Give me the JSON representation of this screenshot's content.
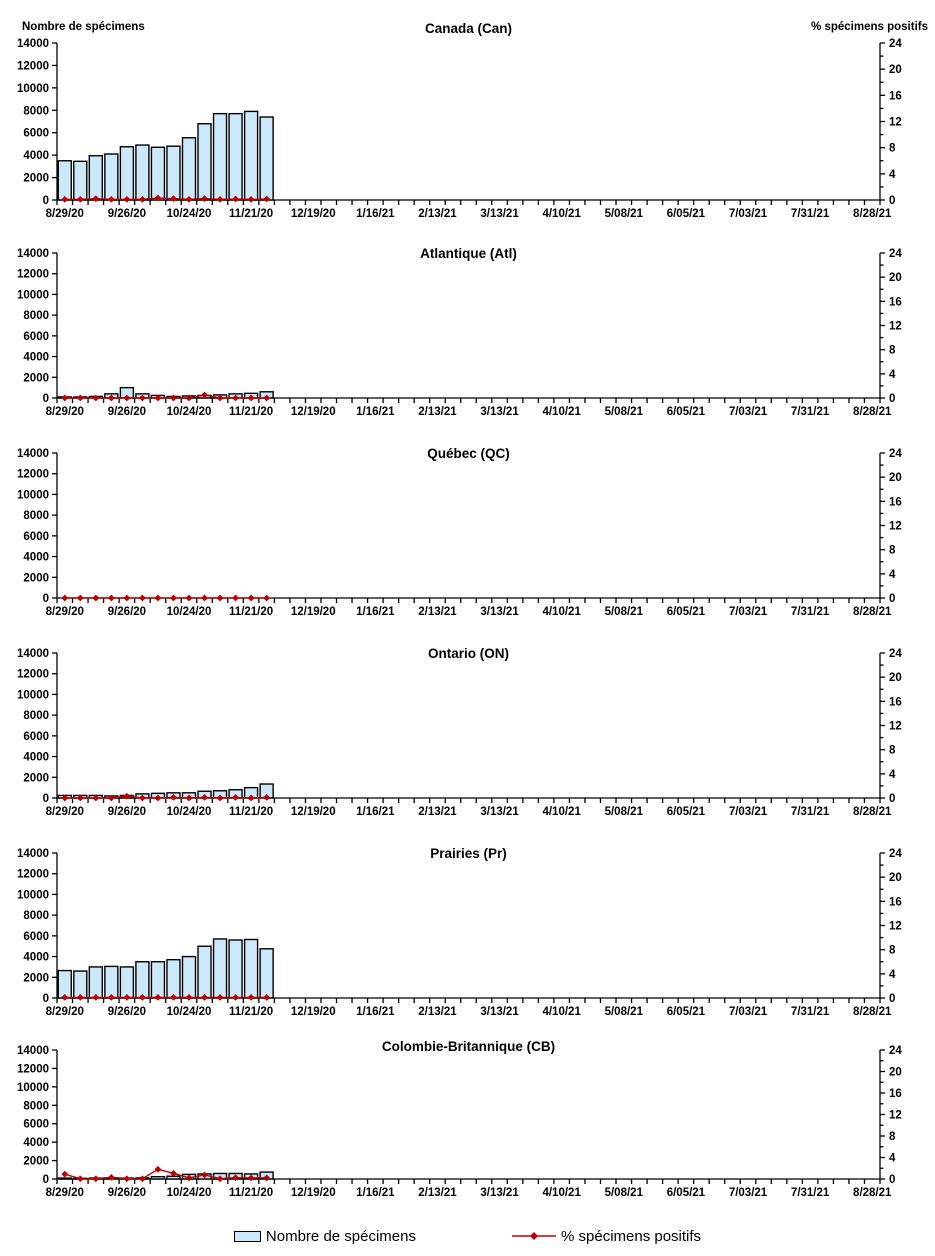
{
  "page": {
    "background": "#ffffff"
  },
  "colors": {
    "bar_fill": "#cce9fb",
    "bar_border": "#000000",
    "line": "#c00000",
    "axis": "#000000",
    "text": "#000000"
  },
  "axes": {
    "left_title": "Nombre de spécimens",
    "right_title": "% spécimens positifs",
    "left_max": 14000,
    "left_tick_step": 2000,
    "right_max": 24,
    "right_tick_step": 4,
    "right_minor_step": 2,
    "weeks_total": 53,
    "x_label_every_weeks": 4,
    "x_labels": [
      "8/29/20",
      "9/26/20",
      "10/24/20",
      "11/21/20",
      "12/19/20",
      "1/16/21",
      "2/13/21",
      "3/13/21",
      "4/10/21",
      "5/08/21",
      "6/05/21",
      "7/03/21",
      "7/31/21",
      "8/28/21"
    ]
  },
  "legend": {
    "specimens_label": "Nombre de spécimens",
    "positive_label": "% spécimens positifs"
  },
  "chart_data": [
    {
      "id": "canada",
      "type": "bar",
      "title": "Canada (Can)",
      "xlabel": "",
      "ylabel_left": "Nombre de spécimens",
      "ylabel_right": "% spécimens positifs",
      "ylim_left": [
        0,
        14000
      ],
      "ylim_right": [
        0,
        24
      ],
      "x_range": [
        "8/29/20",
        "8/28/21"
      ],
      "categories": [
        "8/29/20",
        "9/05/20",
        "9/12/20",
        "9/19/20",
        "9/26/20",
        "10/03/20",
        "10/10/20",
        "10/17/20",
        "10/24/20",
        "10/31/20",
        "11/07/20",
        "11/14/20",
        "11/21/20",
        "11/28/20"
      ],
      "series": [
        {
          "name": "Nombre de spécimens",
          "type": "bar",
          "axis": "left",
          "values": [
            3500,
            3450,
            3950,
            4100,
            4750,
            4900,
            4700,
            4800,
            5550,
            6800,
            7700,
            7700,
            7900,
            7400
          ]
        },
        {
          "name": "% spécimens positifs",
          "type": "line",
          "axis": "right",
          "values": [
            0.1,
            0.1,
            0.2,
            0.1,
            0.1,
            0.1,
            0.3,
            0.2,
            0.1,
            0.2,
            0.1,
            0.15,
            0.1,
            0.15
          ]
        }
      ]
    },
    {
      "id": "atlantique",
      "type": "bar",
      "title": "Atlantique (Atl)",
      "ylim_left": [
        0,
        14000
      ],
      "ylim_right": [
        0,
        24
      ],
      "x_range": [
        "8/29/20",
        "8/28/21"
      ],
      "categories": [
        "8/29/20",
        "9/05/20",
        "9/12/20",
        "9/19/20",
        "9/26/20",
        "10/03/20",
        "10/10/20",
        "10/17/20",
        "10/24/20",
        "10/31/20",
        "11/07/20",
        "11/14/20",
        "11/21/20",
        "11/28/20"
      ],
      "series": [
        {
          "name": "Nombre de spécimens",
          "type": "bar",
          "axis": "left",
          "values": [
            100,
            100,
            150,
            400,
            1000,
            400,
            250,
            150,
            200,
            250,
            300,
            400,
            450,
            600
          ]
        },
        {
          "name": "% spécimens positifs",
          "type": "line",
          "axis": "right",
          "values": [
            0,
            0,
            0,
            0,
            0,
            0,
            0,
            0,
            0,
            0.5,
            0,
            0,
            0,
            0
          ]
        }
      ]
    },
    {
      "id": "quebec",
      "type": "bar",
      "title": "Québec (QC)",
      "ylim_left": [
        0,
        14000
      ],
      "ylim_right": [
        0,
        24
      ],
      "x_range": [
        "8/29/20",
        "8/28/21"
      ],
      "categories": [
        "8/29/20",
        "9/05/20",
        "9/12/20",
        "9/19/20",
        "9/26/20",
        "10/03/20",
        "10/10/20",
        "10/17/20",
        "10/24/20",
        "10/31/20",
        "11/07/20",
        "11/14/20",
        "11/21/20",
        "11/28/20"
      ],
      "series": [
        {
          "name": "Nombre de spécimens",
          "type": "bar",
          "axis": "left",
          "values": [
            0,
            0,
            0,
            0,
            0,
            0,
            0,
            0,
            0,
            0,
            0,
            0,
            0,
            0
          ]
        },
        {
          "name": "% spécimens positifs",
          "type": "line",
          "axis": "right",
          "values": [
            0,
            0,
            0,
            0,
            0,
            0,
            0,
            0,
            0,
            0,
            0,
            0,
            0,
            0
          ]
        }
      ]
    },
    {
      "id": "ontario",
      "type": "bar",
      "title": "Ontario (ON)",
      "ylim_left": [
        0,
        14000
      ],
      "ylim_right": [
        0,
        24
      ],
      "x_range": [
        "8/29/20",
        "8/28/21"
      ],
      "categories": [
        "8/29/20",
        "9/05/20",
        "9/12/20",
        "9/19/20",
        "9/26/20",
        "10/03/20",
        "10/10/20",
        "10/17/20",
        "10/24/20",
        "10/31/20",
        "11/07/20",
        "11/14/20",
        "11/21/20",
        "11/28/20"
      ],
      "series": [
        {
          "name": "Nombre de spécimens",
          "type": "bar",
          "axis": "left",
          "values": [
            250,
            250,
            250,
            200,
            250,
            400,
            450,
            500,
            500,
            650,
            700,
            800,
            1000,
            1350
          ]
        },
        {
          "name": "% spécimens positifs",
          "type": "line",
          "axis": "right",
          "values": [
            0,
            0,
            0,
            0,
            0.3,
            0,
            0,
            0.1,
            0,
            0.1,
            0,
            0.1,
            0,
            0.1
          ]
        }
      ]
    },
    {
      "id": "prairies",
      "type": "bar",
      "title": "Prairies (Pr)",
      "ylim_left": [
        0,
        14000
      ],
      "ylim_right": [
        0,
        24
      ],
      "x_range": [
        "8/29/20",
        "8/28/21"
      ],
      "categories": [
        "8/29/20",
        "9/05/20",
        "9/12/20",
        "9/19/20",
        "9/26/20",
        "10/03/20",
        "10/10/20",
        "10/17/20",
        "10/24/20",
        "10/31/20",
        "11/07/20",
        "11/14/20",
        "11/21/20",
        "11/28/20"
      ],
      "series": [
        {
          "name": "Nombre de spécimens",
          "type": "bar",
          "axis": "left",
          "values": [
            2650,
            2600,
            3000,
            3050,
            3000,
            3500,
            3500,
            3700,
            4000,
            5000,
            5700,
            5600,
            5650,
            4750
          ]
        },
        {
          "name": "% spécimens positifs",
          "type": "line",
          "axis": "right",
          "values": [
            0.1,
            0.1,
            0.1,
            0.1,
            0.1,
            0.1,
            0.1,
            0.1,
            0.1,
            0.1,
            0.1,
            0.1,
            0.1,
            0.1
          ]
        }
      ]
    },
    {
      "id": "colombie-britannique",
      "type": "bar",
      "title": "Colombie-Britannique (CB)",
      "ylim_left": [
        0,
        14000
      ],
      "ylim_right": [
        0,
        24
      ],
      "x_range": [
        "8/29/20",
        "8/28/21"
      ],
      "categories": [
        "8/29/20",
        "9/05/20",
        "9/12/20",
        "9/19/20",
        "9/26/20",
        "10/03/20",
        "10/10/20",
        "10/17/20",
        "10/24/20",
        "10/31/20",
        "11/07/20",
        "11/14/20",
        "11/21/20",
        "11/28/20"
      ],
      "series": [
        {
          "name": "Nombre de spécimens",
          "type": "bar",
          "axis": "left",
          "values": [
            100,
            80,
            100,
            120,
            100,
            120,
            250,
            300,
            500,
            550,
            600,
            600,
            550,
            750
          ]
        },
        {
          "name": "% spécimens positifs",
          "type": "line",
          "axis": "right",
          "values": [
            0.9,
            0.05,
            0.05,
            0.3,
            0.05,
            0.05,
            1.8,
            1.05,
            0.2,
            0.75,
            0.05,
            0.25,
            0.2,
            0.2
          ]
        }
      ]
    }
  ]
}
